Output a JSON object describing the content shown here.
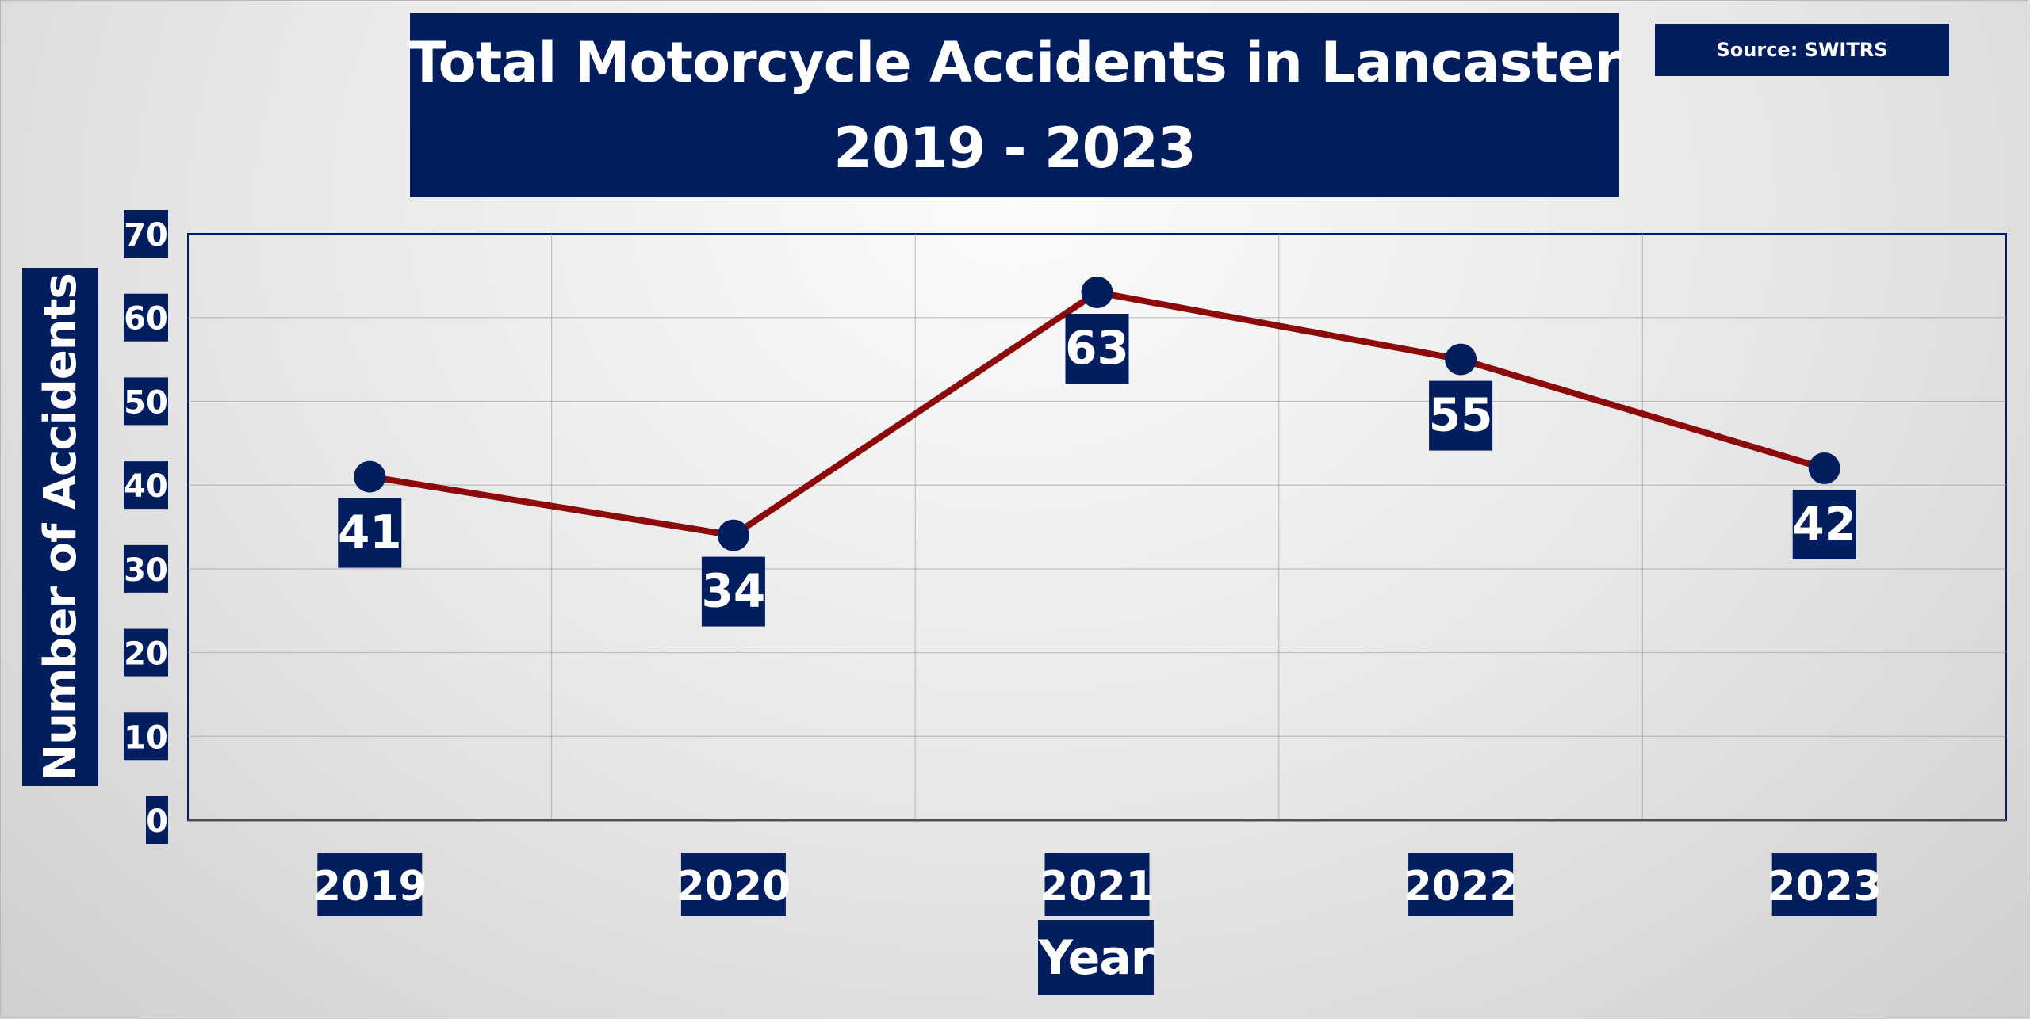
{
  "chart_data": {
    "type": "line",
    "title": [
      "Total Motorcycle Accidents in Lancaster",
      "2019 - 2023"
    ],
    "source": "Source: SWITRS",
    "xlabel": "Year",
    "ylabel": "Number of Accidents",
    "categories": [
      "2019",
      "2020",
      "2021",
      "2022",
      "2023"
    ],
    "series": [
      {
        "values": [
          41,
          34,
          63,
          55,
          42
        ]
      }
    ],
    "data_labels": [
      "41",
      "34",
      "63",
      "55",
      "42"
    ],
    "ylim": [
      0,
      70
    ],
    "yticks": [
      "0",
      "10",
      "20",
      "30",
      "40",
      "50",
      "60",
      "70"
    ],
    "grid": true,
    "legend": "none"
  },
  "colors": {
    "line": "#8c0a0a",
    "marker": "#021e5e",
    "label_box": "#021e5e",
    "label_text": "#ffffff",
    "plot_border": "#021e5e",
    "gridline": "#a0a0a0"
  }
}
